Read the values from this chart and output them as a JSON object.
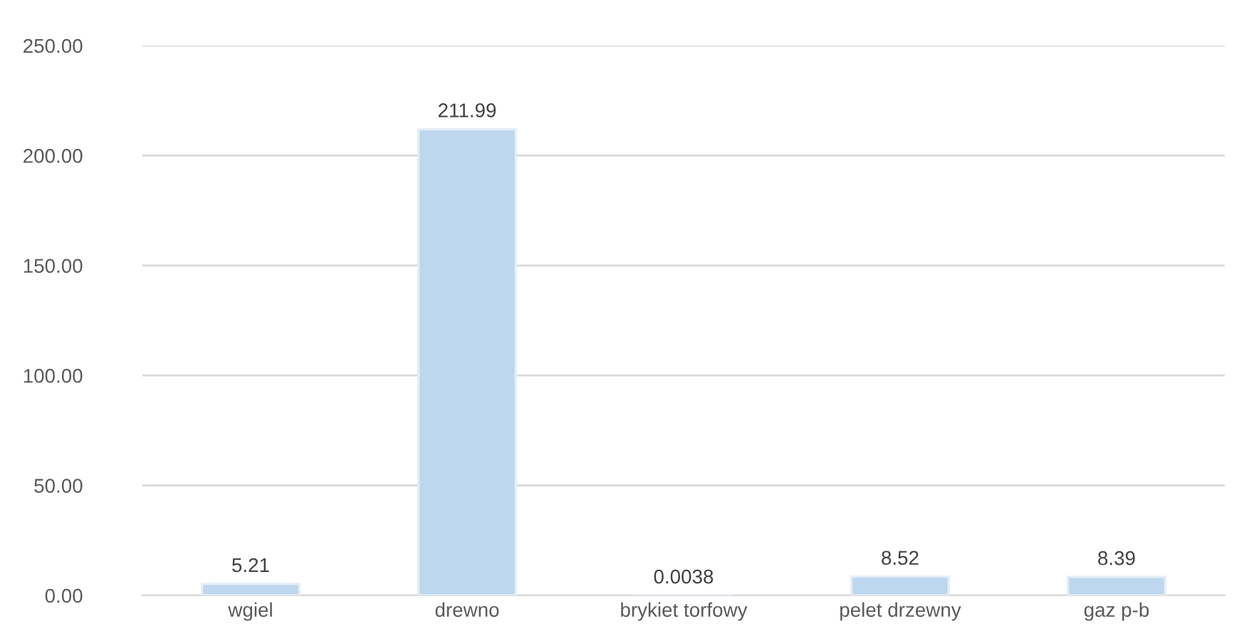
{
  "chart_data": {
    "type": "bar",
    "categories": [
      "wgiel",
      "drewno",
      "brykiet torfowy",
      "pelet drzewny",
      "gaz p-b"
    ],
    "values": [
      5.21,
      211.99,
      0.0038,
      8.52,
      8.39
    ],
    "color": "#bdd7ee",
    "data_labels": true,
    "grid": "y",
    "legend": false,
    "ylim": [
      0,
      250
    ],
    "yticks": [
      {
        "value": 0,
        "label": "0.00"
      },
      {
        "value": 50,
        "label": "50.00"
      },
      {
        "value": 100,
        "label": "100.00"
      },
      {
        "value": 150,
        "label": "150.00"
      },
      {
        "value": 200,
        "label": "200.00"
      },
      {
        "value": 250,
        "label": "250.00"
      }
    ]
  }
}
